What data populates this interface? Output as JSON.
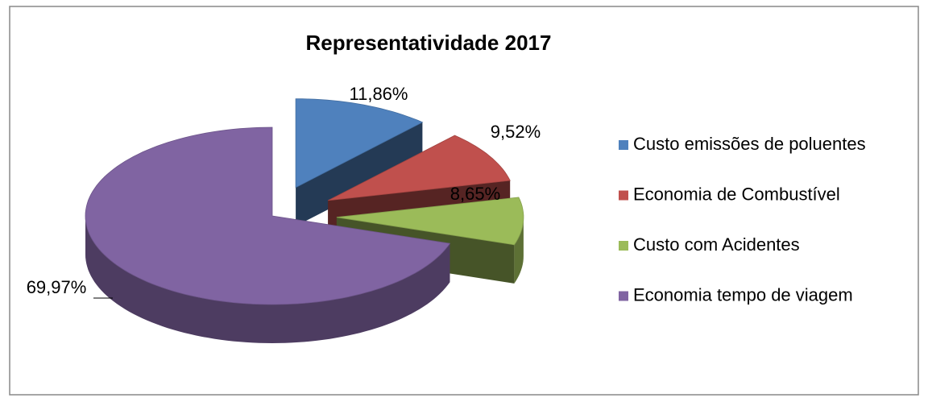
{
  "chart_data": {
    "type": "pie3d",
    "title": "Representatividade 2017",
    "categories": [
      "Custo emissões de poluentes",
      "Economia de Combustível",
      "Custo com Acidentes",
      "Economia tempo de viagem"
    ],
    "values": [
      11.86,
      9.52,
      8.65,
      69.97
    ],
    "value_labels": [
      "11,86%",
      "9,52%",
      "8,65%",
      "69,97%"
    ],
    "colors": [
      "#4f81bd",
      "#c0504d",
      "#9bbb59",
      "#8064a2"
    ],
    "exploded": [
      true,
      true,
      true,
      false
    ],
    "legend": "right"
  }
}
